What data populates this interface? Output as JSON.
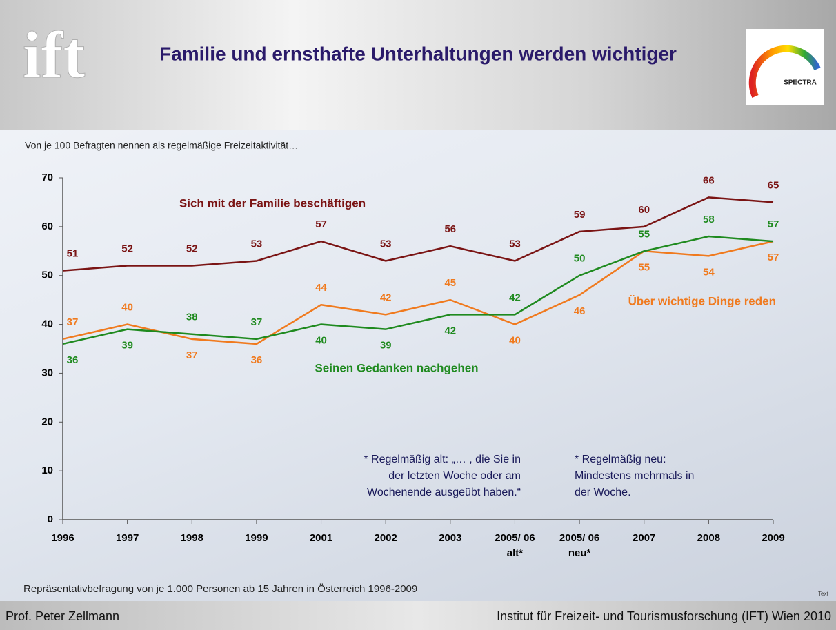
{
  "slide": {
    "logo": "ift",
    "badge": "SPECTRA",
    "corner": "Text",
    "author": "Prof. Peter Zellmann",
    "institute": "Institut für Freizeit- und Tourismusforschung (IFT) Wien 2010"
  },
  "chart_data": {
    "type": "line",
    "title": "Familie und ernsthafte Unterhaltungen werden wichtiger",
    "subtitle": "Von je 100 Befragten nennen als regelmäßige Freizeitaktivität…",
    "source": "Repräsentativbefragung von je 1.000 Personen ab 15 Jahren in Österreich 1996-2009",
    "notes": [
      [
        "* Regelmäßig alt: „… , die Sie in",
        "der letzten Woche oder am",
        "Wochenende ausgeübt haben.“"
      ],
      [
        "* Regelmäßig neu:",
        "Mindestens mehrmals in",
        "der Woche."
      ]
    ],
    "categories": [
      "1996",
      "1997",
      "1998",
      "1999",
      "2001",
      "2002",
      "2003",
      "2005/ 06 alt*",
      "2005/ 06 neu*",
      "2007",
      "2008",
      "2009"
    ],
    "ylim": [
      0,
      70
    ],
    "yticks": [
      0,
      10,
      20,
      30,
      40,
      50,
      60,
      70
    ],
    "series": [
      {
        "name": "Sich mit der Familie beschäftigen",
        "color": "#7a1414",
        "values": [
          51,
          52,
          52,
          53,
          57,
          53,
          56,
          53,
          59,
          60,
          66,
          65
        ]
      },
      {
        "name": "Über wichtige Dinge reden",
        "color": "#f07a1e",
        "values": [
          37,
          40,
          37,
          36,
          44,
          42,
          45,
          40,
          46,
          55,
          54,
          57
        ]
      },
      {
        "name": "Seinen Gedanken nachgehen",
        "color": "#1f8a1f",
        "values": [
          36,
          39,
          38,
          37,
          40,
          39,
          42,
          42,
          50,
          55,
          58,
          57
        ]
      }
    ]
  }
}
